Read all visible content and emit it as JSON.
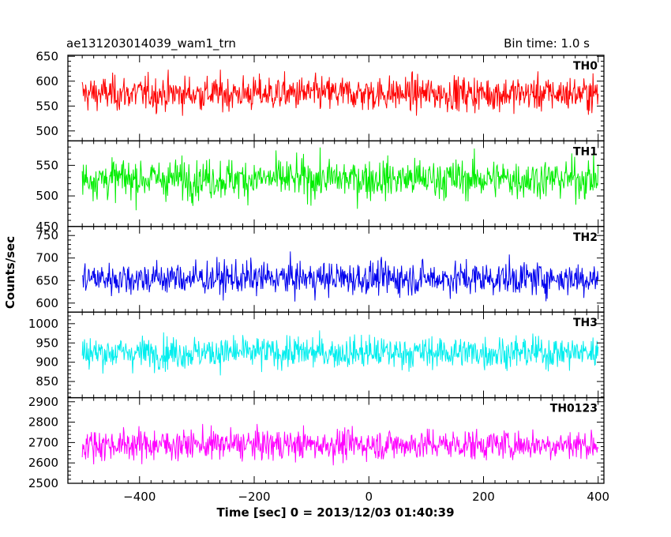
{
  "header": {
    "title": "ae131203014039_wam1_trn",
    "bin_time": "Bin time: 1.0 s"
  },
  "chart_data": {
    "type": "line",
    "title": "ae131203014039_wam1_trn",
    "xlabel": "Time [sec] 0 = 2013/12/03 01:40:39",
    "ylabel": "Counts/sec",
    "xlim": [
      -525,
      410
    ],
    "x_range_data": [
      -500,
      400
    ],
    "x_ticks": [
      -400,
      -200,
      0,
      200,
      400
    ],
    "x_tick_labels": [
      "−400",
      "−200",
      "0",
      "200",
      "400"
    ],
    "bin_time_s": 1.0,
    "panels": [
      {
        "name": "TH0",
        "color": "#ff0000",
        "ylim": [
          480,
          652
        ],
        "yticks": [
          500,
          550,
          600,
          650
        ],
        "ytick_labels": [
          "500",
          "550",
          "600",
          "650"
        ],
        "mean": 575,
        "spread": 30
      },
      {
        "name": "TH1",
        "color": "#00ee00",
        "ylim": [
          450,
          590
        ],
        "yticks": [
          450,
          500,
          550
        ],
        "ytick_labels": [
          "450",
          "500",
          "550"
        ],
        "mean": 528,
        "spread": 28
      },
      {
        "name": "TH2",
        "color": "#0000ee",
        "ylim": [
          580,
          770
        ],
        "yticks": [
          600,
          650,
          700,
          750
        ],
        "ytick_labels": [
          "600",
          "650",
          "700",
          "750"
        ],
        "mean": 655,
        "spread": 32
      },
      {
        "name": "TH3",
        "color": "#00eeee",
        "ylim": [
          808,
          1030
        ],
        "yticks": [
          850,
          900,
          950,
          1000
        ],
        "ytick_labels": [
          "850",
          "900",
          "950",
          "1000"
        ],
        "mean": 925,
        "spread": 36
      },
      {
        "name": "TH0123",
        "color": "#ff00ff",
        "ylim": [
          2500,
          2920
        ],
        "yticks": [
          2500,
          2600,
          2700,
          2800,
          2900
        ],
        "ytick_labels": [
          "2500",
          "2600",
          "2700",
          "2800",
          "2900"
        ],
        "mean": 2690,
        "spread": 65
      }
    ]
  }
}
